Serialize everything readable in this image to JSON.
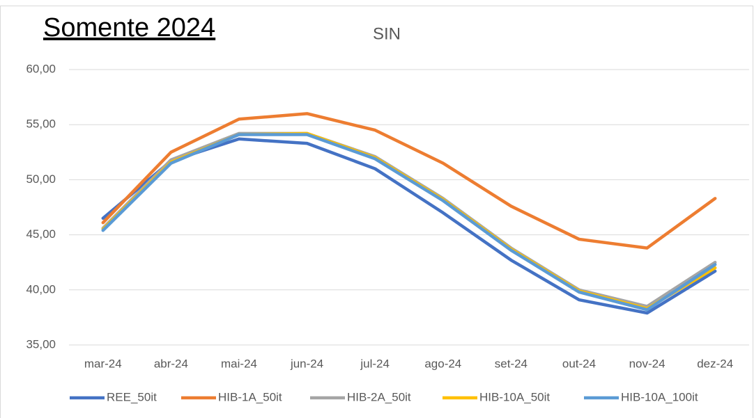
{
  "chart_data": {
    "type": "line",
    "annotation": "Somente 2024",
    "title": "SIN",
    "categories": [
      "mar-24",
      "abr-24",
      "mai-24",
      "jun-24",
      "jul-24",
      "ago-24",
      "set-24",
      "out-24",
      "nov-24",
      "dez-24"
    ],
    "series": [
      {
        "name": "REE_50it",
        "color": "#4472c4",
        "values": [
          46.5,
          51.7,
          53.7,
          53.3,
          51.0,
          47.0,
          42.7,
          39.1,
          37.9,
          41.7
        ]
      },
      {
        "name": "HIB-1A_50it",
        "color": "#ed7d31",
        "values": [
          46.1,
          52.5,
          55.5,
          56.0,
          54.5,
          51.5,
          47.6,
          44.6,
          43.8,
          48.3
        ]
      },
      {
        "name": "HIB-2A_50it",
        "color": "#a5a5a5",
        "values": [
          45.6,
          51.8,
          54.2,
          54.2,
          52.1,
          48.3,
          43.8,
          40.0,
          38.5,
          42.5
        ]
      },
      {
        "name": "HIB-10A_50it",
        "color": "#ffc000",
        "values": [
          45.5,
          51.6,
          54.1,
          54.2,
          52.0,
          48.2,
          43.7,
          39.9,
          38.3,
          42.0
        ]
      },
      {
        "name": "HIB-10A_100it",
        "color": "#5b9bd5",
        "values": [
          45.4,
          51.5,
          54.1,
          54.1,
          51.9,
          48.1,
          43.6,
          39.8,
          38.2,
          42.3
        ]
      }
    ],
    "ylim": [
      35,
      60
    ],
    "yticks": [
      {
        "value": 35,
        "label": "35,00"
      },
      {
        "value": 40,
        "label": "40,00"
      },
      {
        "value": 45,
        "label": "45,00"
      },
      {
        "value": 50,
        "label": "50,00"
      },
      {
        "value": 55,
        "label": "55,00"
      },
      {
        "value": 60,
        "label": "60,00"
      }
    ],
    "grid": true,
    "legend": "bottom"
  }
}
